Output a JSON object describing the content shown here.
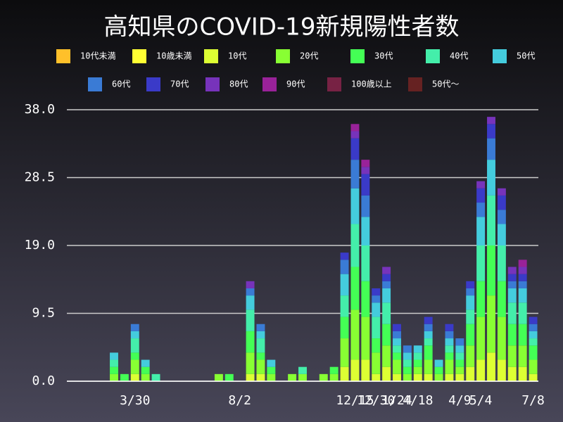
{
  "chart_data": {
    "type": "stacked-bar",
    "title": "高知県のCOVID-19新規陽性者数",
    "categories": [
      null,
      null,
      null,
      null,
      null,
      null,
      "3/30",
      null,
      null,
      null,
      null,
      null,
      null,
      null,
      null,
      null,
      "8/2",
      null,
      null,
      null,
      null,
      null,
      null,
      null,
      null,
      null,
      null,
      "12/15",
      null,
      "12/30",
      null,
      "1/24",
      null,
      "4/18",
      null,
      null,
      null,
      "4/9",
      null,
      "5/4",
      null,
      null,
      null,
      null,
      "7/8"
    ],
    "ylim": [
      0,
      38
    ],
    "yticks": [
      {
        "value": 0,
        "label": "0.0"
      },
      9.5,
      {
        "value": 19,
        "label": "19.0"
      },
      28.5,
      {
        "value": 38,
        "label": "38.0"
      }
    ],
    "grid": true,
    "series": [
      {
        "name": "10代未満",
        "color": "#ffc02a",
        "values": [
          0,
          0,
          0,
          0,
          0,
          0,
          0,
          0,
          0,
          0,
          0,
          0,
          0,
          0,
          0,
          0,
          0,
          0,
          0,
          0,
          0,
          0,
          0,
          0,
          0,
          0,
          0,
          0,
          0,
          0,
          0,
          0,
          0,
          0,
          0,
          0,
          0,
          0,
          0,
          0,
          0,
          0,
          0,
          0,
          0
        ]
      },
      {
        "name": "10歳未満",
        "color": "#ffff33",
        "values": [
          0,
          0,
          0,
          0,
          0,
          0,
          0,
          0,
          0,
          0,
          0,
          0,
          0,
          0,
          0,
          0,
          0,
          0,
          0,
          0,
          0,
          0,
          0,
          0,
          0,
          0,
          0,
          0,
          0,
          0,
          0,
          0,
          0,
          0,
          0,
          0,
          0,
          0,
          0,
          0,
          0,
          0,
          0,
          0,
          0
        ]
      },
      {
        "name": "10代",
        "color": "#ddff33",
        "values": [
          0,
          0,
          0,
          0,
          0,
          0,
          1,
          0,
          0,
          0,
          0,
          0,
          0,
          0,
          0,
          0,
          0,
          1,
          1,
          0,
          0,
          0,
          0,
          0,
          0,
          0,
          2,
          3,
          3,
          1,
          2,
          1,
          0,
          1,
          1,
          0,
          1,
          1,
          2,
          3,
          4,
          3,
          2,
          2,
          1
        ]
      },
      {
        "name": "20代",
        "color": "#88ff33",
        "values": [
          0,
          0,
          0,
          0,
          1,
          0,
          2,
          1,
          0,
          0,
          0,
          0,
          0,
          0,
          1,
          0,
          0,
          3,
          2,
          1,
          0,
          1,
          1,
          0,
          1,
          1,
          4,
          7,
          6,
          3,
          3,
          2,
          1,
          1,
          2,
          1,
          2,
          1,
          3,
          6,
          8,
          6,
          3,
          3,
          2
        ]
      },
      {
        "name": "30代",
        "color": "#44ff55",
        "values": [
          0,
          0,
          0,
          0,
          1,
          1,
          1,
          1,
          0,
          0,
          0,
          0,
          0,
          0,
          0,
          1,
          0,
          3,
          1,
          1,
          0,
          0,
          0,
          0,
          0,
          1,
          3,
          6,
          5,
          2,
          3,
          1,
          1,
          1,
          2,
          1,
          1,
          1,
          3,
          5,
          7,
          5,
          3,
          3,
          2
        ]
      },
      {
        "name": "40代",
        "color": "#44eeaa",
        "values": [
          0,
          0,
          0,
          0,
          1,
          0,
          2,
          0,
          1,
          0,
          0,
          0,
          0,
          0,
          0,
          0,
          0,
          3,
          2,
          0,
          0,
          0,
          1,
          0,
          0,
          0,
          3,
          6,
          5,
          3,
          3,
          1,
          1,
          1,
          1,
          0,
          1,
          1,
          2,
          5,
          7,
          5,
          3,
          3,
          1
        ]
      },
      {
        "name": "50代",
        "color": "#44ccdd",
        "values": [
          0,
          0,
          0,
          0,
          1,
          0,
          1,
          1,
          0,
          0,
          0,
          0,
          0,
          0,
          0,
          0,
          0,
          2,
          1,
          1,
          0,
          0,
          0,
          0,
          0,
          0,
          3,
          5,
          4,
          2,
          2,
          1,
          1,
          1,
          1,
          1,
          1,
          1,
          2,
          4,
          5,
          3,
          2,
          2,
          1
        ]
      },
      {
        "name": "60代",
        "color": "#3a7bd5",
        "values": [
          0,
          0,
          0,
          0,
          0,
          0,
          1,
          0,
          0,
          0,
          0,
          0,
          0,
          0,
          0,
          0,
          0,
          1,
          1,
          0,
          0,
          0,
          0,
          0,
          0,
          0,
          2,
          4,
          3,
          1,
          1,
          1,
          1,
          0,
          1,
          0,
          1,
          1,
          1,
          2,
          3,
          2,
          1,
          1,
          1
        ]
      },
      {
        "name": "70代",
        "color": "#3a3ac8",
        "values": [
          0,
          0,
          0,
          0,
          0,
          0,
          0,
          0,
          0,
          0,
          0,
          0,
          0,
          0,
          0,
          0,
          0,
          0,
          0,
          0,
          0,
          0,
          0,
          0,
          0,
          0,
          1,
          3,
          3,
          1,
          1,
          1,
          0,
          0,
          1,
          0,
          1,
          0,
          1,
          2,
          2,
          2,
          1,
          1,
          1
        ]
      },
      {
        "name": "80代",
        "color": "#7733bb",
        "values": [
          0,
          0,
          0,
          0,
          0,
          0,
          0,
          0,
          0,
          0,
          0,
          0,
          0,
          0,
          0,
          0,
          0,
          1,
          0,
          0,
          0,
          0,
          0,
          0,
          0,
          0,
          0,
          1,
          1,
          0,
          1,
          0,
          0,
          0,
          0,
          0,
          0,
          0,
          0,
          1,
          1,
          1,
          1,
          1,
          0
        ]
      },
      {
        "name": "90代",
        "color": "#992299",
        "values": [
          0,
          0,
          0,
          0,
          0,
          0,
          0,
          0,
          0,
          0,
          0,
          0,
          0,
          0,
          0,
          0,
          0,
          0,
          0,
          0,
          0,
          0,
          0,
          0,
          0,
          0,
          0,
          1,
          1,
          0,
          0,
          0,
          0,
          0,
          0,
          0,
          0,
          0,
          0,
          0,
          0,
          0,
          0,
          1,
          0
        ]
      },
      {
        "name": "100歳以上",
        "color": "#772244",
        "values": [
          0,
          0,
          0,
          0,
          0,
          0,
          0,
          0,
          0,
          0,
          0,
          0,
          0,
          0,
          0,
          0,
          0,
          0,
          0,
          0,
          0,
          0,
          0,
          0,
          0,
          0,
          0,
          0,
          0,
          0,
          0,
          0,
          0,
          0,
          0,
          0,
          0,
          0,
          0,
          0,
          0,
          0,
          0,
          0,
          0
        ]
      },
      {
        "name": "50代〜",
        "color": "#662222",
        "values": [
          0,
          0,
          0,
          0,
          0,
          0,
          0,
          0,
          0,
          0,
          0,
          0,
          0,
          0,
          0,
          0,
          0,
          0,
          0,
          0,
          0,
          0,
          0,
          0,
          0,
          0,
          0,
          0,
          0,
          0,
          0,
          0,
          0,
          0,
          0,
          0,
          0,
          0,
          0,
          0,
          0,
          0,
          0,
          0,
          0
        ]
      }
    ]
  }
}
